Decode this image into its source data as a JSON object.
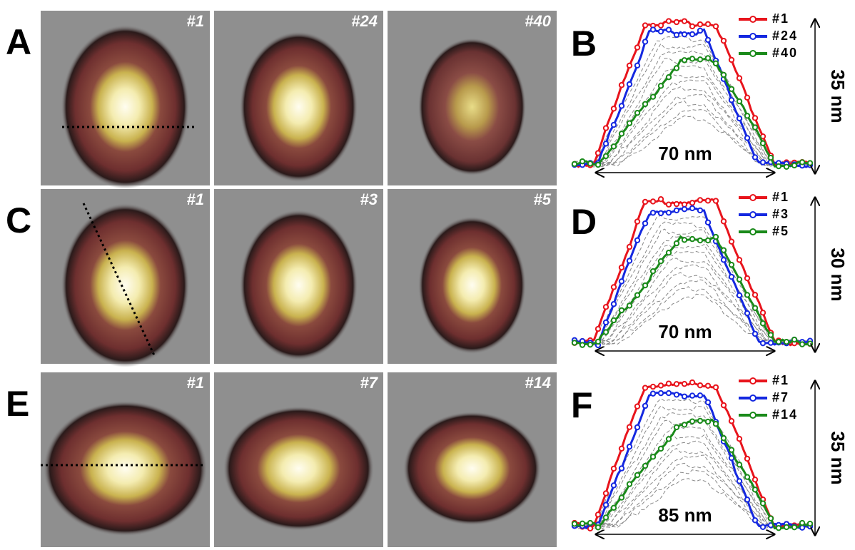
{
  "rows": [
    {
      "label": "A",
      "frames": [
        "#1",
        "#24",
        "#40"
      ],
      "plot": {
        "label": "B",
        "legend": [
          "#1",
          "#24",
          "#40"
        ],
        "width_label": "70 nm",
        "height_label": "35 nm"
      }
    },
    {
      "label": "C",
      "frames": [
        "#1",
        "#3",
        "#5"
      ],
      "plot": {
        "label": "D",
        "legend": [
          "#1",
          "#3",
          "#5"
        ],
        "width_label": "70 nm",
        "height_label": "30 nm"
      }
    },
    {
      "label": "E",
      "frames": [
        "#1",
        "#7",
        "#14"
      ],
      "plot": {
        "label": "F",
        "legend": [
          "#1",
          "#7",
          "#14"
        ],
        "width_label": "85 nm",
        "height_label": "35 nm"
      }
    }
  ]
}
